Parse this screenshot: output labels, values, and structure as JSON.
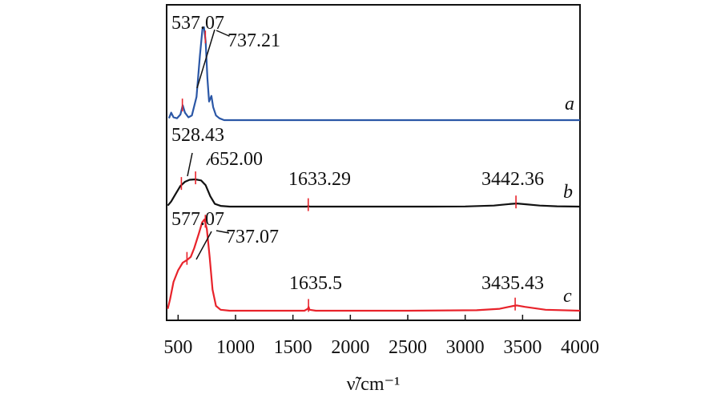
{
  "chart_data": {
    "type": "line",
    "title": "",
    "xlabel": "ν̃/cm⁻¹",
    "ylabel": "",
    "xlim": [
      400,
      4000
    ],
    "x_ticks": [
      500,
      1000,
      1500,
      2000,
      2500,
      3000,
      3500,
      4000
    ],
    "x_tick_labels": [
      "500",
      "1000",
      "1500",
      "2000",
      "2500",
      "3000",
      "3500",
      "4000"
    ],
    "y_ticks": false,
    "grid": false,
    "legend": "none",
    "series": [
      {
        "name": "a",
        "color": "#2b57a6",
        "points": [
          [
            420,
            0.02
          ],
          [
            440,
            0.08
          ],
          [
            460,
            0.03
          ],
          [
            490,
            0.02
          ],
          [
            520,
            0.06
          ],
          [
            540,
            0.16
          ],
          [
            560,
            0.08
          ],
          [
            590,
            0.03
          ],
          [
            620,
            0.05
          ],
          [
            660,
            0.25
          ],
          [
            690,
            0.7
          ],
          [
            712,
            0.98
          ],
          [
            725,
            1.0
          ],
          [
            740,
            0.85
          ],
          [
            755,
            0.45
          ],
          [
            770,
            0.2
          ],
          [
            790,
            0.26
          ],
          [
            805,
            0.14
          ],
          [
            830,
            0.05
          ],
          [
            860,
            0.02
          ],
          [
            900,
            0.0
          ],
          [
            1500,
            0.0
          ],
          [
            2500,
            0.0
          ],
          [
            3500,
            0.0
          ],
          [
            4000,
            0.0
          ]
        ],
        "peaks": [
          {
            "x": 537.07,
            "label": "537.07"
          },
          {
            "x": 737.21,
            "label": "737.21"
          }
        ]
      },
      {
        "name": "b",
        "color": "#111111",
        "points": [
          [
            410,
            0.03
          ],
          [
            440,
            0.15
          ],
          [
            480,
            0.38
          ],
          [
            520,
            0.6
          ],
          [
            560,
            0.72
          ],
          [
            600,
            0.78
          ],
          [
            650,
            0.79
          ],
          [
            700,
            0.76
          ],
          [
            740,
            0.62
          ],
          [
            780,
            0.3
          ],
          [
            820,
            0.08
          ],
          [
            870,
            0.02
          ],
          [
            950,
            0.0
          ],
          [
            1500,
            0.0
          ],
          [
            1620,
            0.0
          ],
          [
            1633,
            0.01
          ],
          [
            1650,
            0.0
          ],
          [
            2000,
            0.0
          ],
          [
            2700,
            0.0
          ],
          [
            3000,
            0.005
          ],
          [
            3250,
            0.03
          ],
          [
            3400,
            0.08
          ],
          [
            3450,
            0.09
          ],
          [
            3520,
            0.07
          ],
          [
            3650,
            0.03
          ],
          [
            3800,
            0.01
          ],
          [
            4000,
            0.0
          ]
        ],
        "peaks": [
          {
            "x": 528.43,
            "label": "528.43"
          },
          {
            "x": 652.0,
            "label": "652.00"
          },
          {
            "x": 1633.29,
            "label": "1633.29"
          },
          {
            "x": 3442.36,
            "label": "3442.36"
          }
        ]
      },
      {
        "name": "c",
        "color": "#e8232b",
        "points": [
          [
            410,
            0.02
          ],
          [
            430,
            0.12
          ],
          [
            460,
            0.3
          ],
          [
            500,
            0.42
          ],
          [
            540,
            0.5
          ],
          [
            580,
            0.53
          ],
          [
            610,
            0.56
          ],
          [
            640,
            0.65
          ],
          [
            680,
            0.8
          ],
          [
            710,
            0.92
          ],
          [
            730,
            0.95
          ],
          [
            750,
            0.85
          ],
          [
            775,
            0.55
          ],
          [
            800,
            0.22
          ],
          [
            830,
            0.05
          ],
          [
            870,
            0.01
          ],
          [
            950,
            0.0
          ],
          [
            1600,
            0.0
          ],
          [
            1630,
            0.02
          ],
          [
            1636,
            0.04
          ],
          [
            1645,
            0.01
          ],
          [
            1700,
            0.0
          ],
          [
            2500,
            0.0
          ],
          [
            3100,
            0.005
          ],
          [
            3300,
            0.02
          ],
          [
            3420,
            0.05
          ],
          [
            3450,
            0.055
          ],
          [
            3520,
            0.04
          ],
          [
            3700,
            0.01
          ],
          [
            4000,
            0.0
          ]
        ],
        "peaks": [
          {
            "x": 577.07,
            "label": "577.07"
          },
          {
            "x": 737.07,
            "label": "737.07"
          },
          {
            "x": 1635.5,
            "label": "1635.5"
          },
          {
            "x": 3435.43,
            "label": "3435.43"
          }
        ]
      }
    ]
  }
}
